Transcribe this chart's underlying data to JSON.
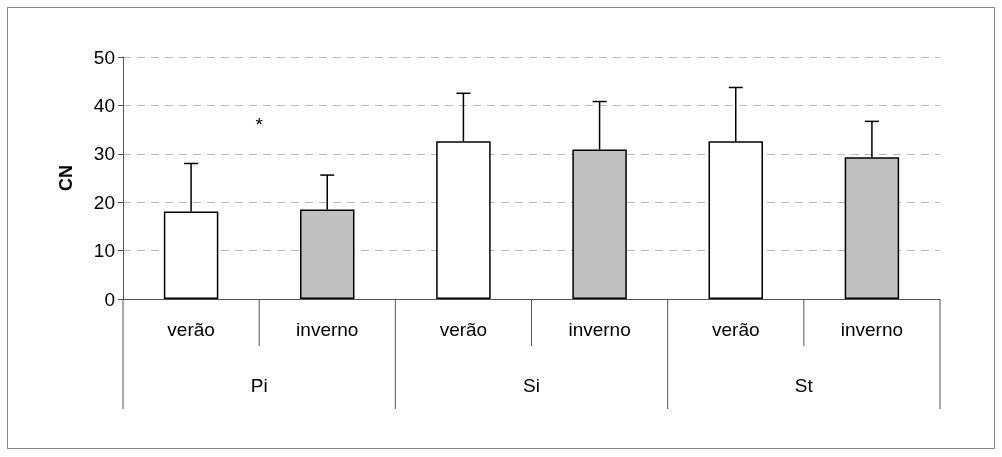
{
  "chart_data": {
    "type": "bar",
    "ylabel": "CN",
    "categories": [
      "verão",
      "inverno",
      "verão",
      "inverno",
      "verão",
      "inverno"
    ],
    "values": [
      18.1,
      18.5,
      32.6,
      30.9,
      32.6,
      29.3
    ],
    "errors": [
      [
        18.1,
        28.0
      ],
      [
        18.5,
        25.6
      ],
      [
        32.6,
        42.5
      ],
      [
        30.9,
        40.8
      ],
      [
        32.6,
        43.7
      ],
      [
        29.3,
        36.7
      ]
    ],
    "colors": [
      "#ffffff",
      "#c0c0c0",
      "#ffffff",
      "#c0c0c0",
      "#ffffff",
      "#c0c0c0"
    ],
    "annotations": [
      "*",
      "Pi",
      "Si",
      "St"
    ],
    "ylim": [
      0,
      50
    ],
    "yticks": [
      0,
      10,
      20,
      30,
      40,
      50
    ],
    "grid": "y"
  }
}
